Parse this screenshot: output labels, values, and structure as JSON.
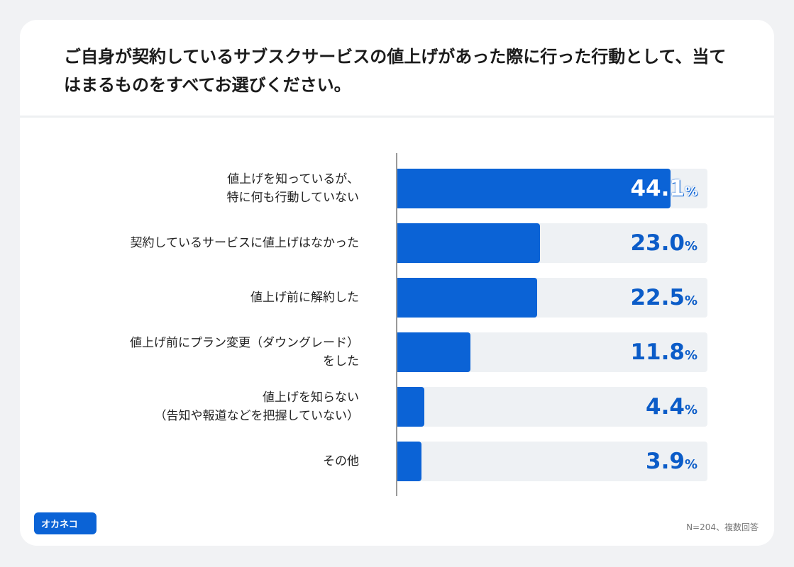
{
  "chart_data": {
    "type": "bar",
    "orientation": "horizontal",
    "title": "ご自身が契約しているサブスクサービスの値上げがあった際に行った行動として、当てはまるものをすべてお選びください。",
    "categories": [
      "値上げを知っているが、\n特に何も行動していない",
      "契約しているサービスに値上げはなかった",
      "値上げ前に解約した",
      "値上げ前にプラン変更（ダウングレード）\nをした",
      "値上げを知らない\n（告知や報道などを把握していない）",
      "その他"
    ],
    "values": [
      44.1,
      23.0,
      22.5,
      11.8,
      4.4,
      3.9
    ],
    "value_labels": [
      "44.1",
      "23.0",
      "22.5",
      "11.8",
      "4.4",
      "3.9"
    ],
    "value_unit": "%",
    "color": "#0b63d6",
    "track_color": "#eef1f4",
    "xlim": [
      0,
      50
    ],
    "note": "N=204、複数回答",
    "logo": "オカネコ"
  }
}
